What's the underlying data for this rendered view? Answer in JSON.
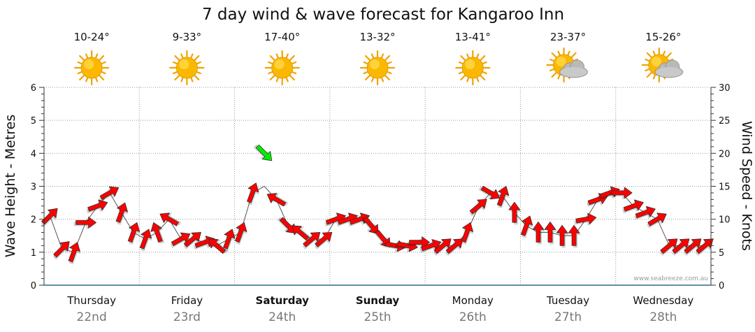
{
  "chart_data": {
    "type": "line",
    "title": "7 day wind & wave forecast for Kangaroo Inn",
    "ylabel_left": "Wave Height - Metres",
    "ylabel_right": "Wind Speed - Knots",
    "ylim_left": [
      0,
      6
    ],
    "ylim_right": [
      0,
      30
    ],
    "yticks_left": [
      "0",
      "1",
      "2",
      "3",
      "4",
      "5",
      "6"
    ],
    "yticks_right": [
      "0",
      "5",
      "10",
      "15",
      "20",
      "25",
      "30"
    ],
    "credit": "www.seabreeze.com.au",
    "days": [
      {
        "name": "Thursday",
        "date": "22nd",
        "temp": "10-24°",
        "icon": "sun-icon",
        "bold": false
      },
      {
        "name": "Friday",
        "date": "23rd",
        "temp": "9-33°",
        "icon": "sun-icon",
        "bold": false
      },
      {
        "name": "Saturday",
        "date": "24th",
        "temp": "17-40°",
        "icon": "sun-icon",
        "bold": true
      },
      {
        "name": "Sunday",
        "date": "25th",
        "temp": "13-32°",
        "icon": "sun-icon",
        "bold": true
      },
      {
        "name": "Monday",
        "date": "26th",
        "temp": "13-41°",
        "icon": "sun-icon",
        "bold": false
      },
      {
        "name": "Tuesday",
        "date": "27th",
        "temp": "23-37°",
        "icon": "partly-cloudy-icon",
        "bold": false
      },
      {
        "name": "Wednesday",
        "date": "28th",
        "temp": "15-26°",
        "icon": "partly-cloudy-icon",
        "bold": false
      }
    ],
    "wind_colors": {
      "light": "#ff0000",
      "moderate": "#ffff00",
      "strong": "#00ee00"
    },
    "wind_thresholds_knots": [
      15,
      20
    ],
    "wind_series": {
      "name": "Wind Speed (knots)",
      "x_day": [
        0.0,
        0.125,
        0.25,
        0.375,
        0.5,
        0.625,
        0.75,
        0.875,
        1.0,
        1.125,
        1.25,
        1.375,
        1.5,
        1.625,
        1.75,
        1.875,
        2.0,
        2.125,
        2.25,
        2.375,
        2.5,
        2.625,
        2.75,
        2.875,
        3.0,
        3.125,
        3.25,
        3.375,
        3.5,
        3.625,
        3.75,
        3.875,
        4.0,
        4.125,
        4.25,
        4.375,
        4.5,
        4.625,
        4.75,
        4.875,
        5.0,
        5.125,
        5.25,
        5.375,
        5.5,
        5.625,
        5.75,
        5.875,
        6.0,
        6.125,
        6.25,
        6.375,
        6.5,
        6.625,
        6.75,
        6.875
      ],
      "knots": [
        10.5,
        5.5,
        5.0,
        9.5,
        12.0,
        14.0,
        11.0,
        8.0,
        7.0,
        8.0,
        10.0,
        7.0,
        7.0,
        6.5,
        6.0,
        7.0,
        8.0,
        14.0,
        20.0,
        13.0,
        9.0,
        8.0,
        7.0,
        7.0,
        10.0,
        10.0,
        10.0,
        9.0,
        7.0,
        6.0,
        6.0,
        6.5,
        6.0,
        6.0,
        6.0,
        8.0,
        12.0,
        14.0,
        13.5,
        11.0,
        9.0,
        8.0,
        8.0,
        7.5,
        7.5,
        10.0,
        13.0,
        14.0,
        14.0,
        12.0,
        11.0,
        10.0,
        6.0,
        6.0,
        6.0,
        6.0
      ],
      "direction_deg": [
        225,
        225,
        200,
        270,
        250,
        240,
        200,
        200,
        200,
        160,
        120,
        240,
        230,
        250,
        130,
        200,
        200,
        200,
        315,
        120,
        315,
        130,
        230,
        230,
        250,
        250,
        250,
        320,
        320,
        280,
        280,
        270,
        250,
        230,
        230,
        200,
        230,
        300,
        200,
        180,
        200,
        180,
        180,
        180,
        180,
        260,
        250,
        250,
        270,
        250,
        250,
        240,
        230,
        230,
        230,
        230
      ]
    },
    "wave_series": {
      "name": "Wave Height (m)",
      "x_day": [
        0.0,
        0.125,
        0.25,
        0.375,
        0.5,
        0.625,
        0.75,
        0.875,
        1.0,
        1.125,
        1.25,
        1.375,
        1.5,
        1.625,
        1.75,
        1.875,
        2.0,
        2.125,
        2.25,
        2.375,
        2.5,
        2.625,
        2.75,
        2.875,
        3.0,
        3.125,
        3.25,
        3.375,
        3.5,
        3.625,
        3.75,
        3.875,
        4.0,
        4.125,
        4.25,
        4.375,
        4.5,
        4.625,
        4.75,
        4.875,
        5.0,
        5.125,
        5.25,
        5.375,
        5.5,
        5.625,
        5.75,
        5.875,
        6.0,
        6.125,
        6.25,
        6.375,
        6.5,
        6.625,
        6.75,
        6.875
      ],
      "metres": [
        2.1,
        1.1,
        1.0,
        1.9,
        2.4,
        2.8,
        2.2,
        1.6,
        1.4,
        1.6,
        2.0,
        1.4,
        1.4,
        1.3,
        1.2,
        1.4,
        1.6,
        2.8,
        3.0,
        2.6,
        1.8,
        1.6,
        1.4,
        1.4,
        2.0,
        2.0,
        2.0,
        1.8,
        1.4,
        1.2,
        1.2,
        1.3,
        1.2,
        1.2,
        1.2,
        1.6,
        2.4,
        2.8,
        2.7,
        2.2,
        1.8,
        1.6,
        1.6,
        1.5,
        1.5,
        2.0,
        2.6,
        2.8,
        2.8,
        2.4,
        2.2,
        2.0,
        1.2,
        1.2,
        1.2,
        1.2
      ]
    }
  }
}
